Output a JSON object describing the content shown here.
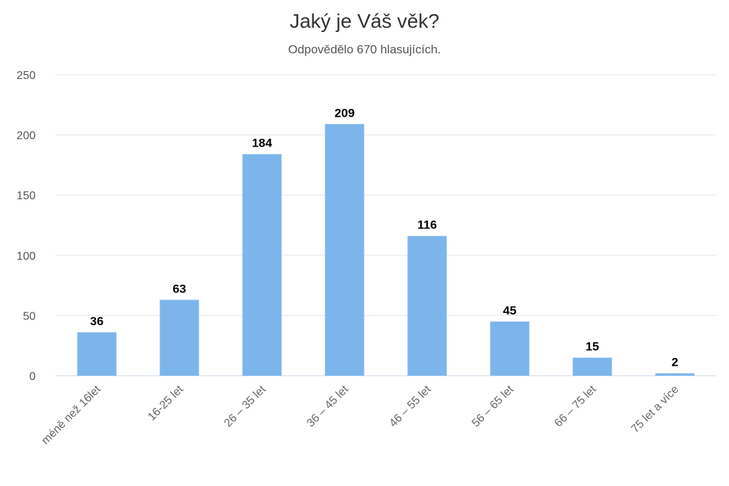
{
  "title": "Jaký je Váš věk?",
  "subtitle": "Odpovědělo 670 hlasujících.",
  "chart_data": {
    "type": "bar",
    "title": "Jaký je Váš věk?",
    "subtitle": "Odpovědělo 670 hlasujících.",
    "categories": [
      "méně než 16let",
      "16-25 let",
      "26 – 35 let",
      "36 – 45 let",
      "46 – 55 let",
      "56 – 65 let",
      "66 – 75 let",
      "75 let a více"
    ],
    "values": [
      36,
      63,
      184,
      209,
      116,
      45,
      15,
      2
    ],
    "xlabel": "",
    "ylabel": "",
    "ylim": [
      0,
      250
    ],
    "yticks": [
      0,
      50,
      100,
      150,
      200,
      250
    ],
    "grid": true,
    "bar_color": "#7cb5ec",
    "data_labels": true
  }
}
